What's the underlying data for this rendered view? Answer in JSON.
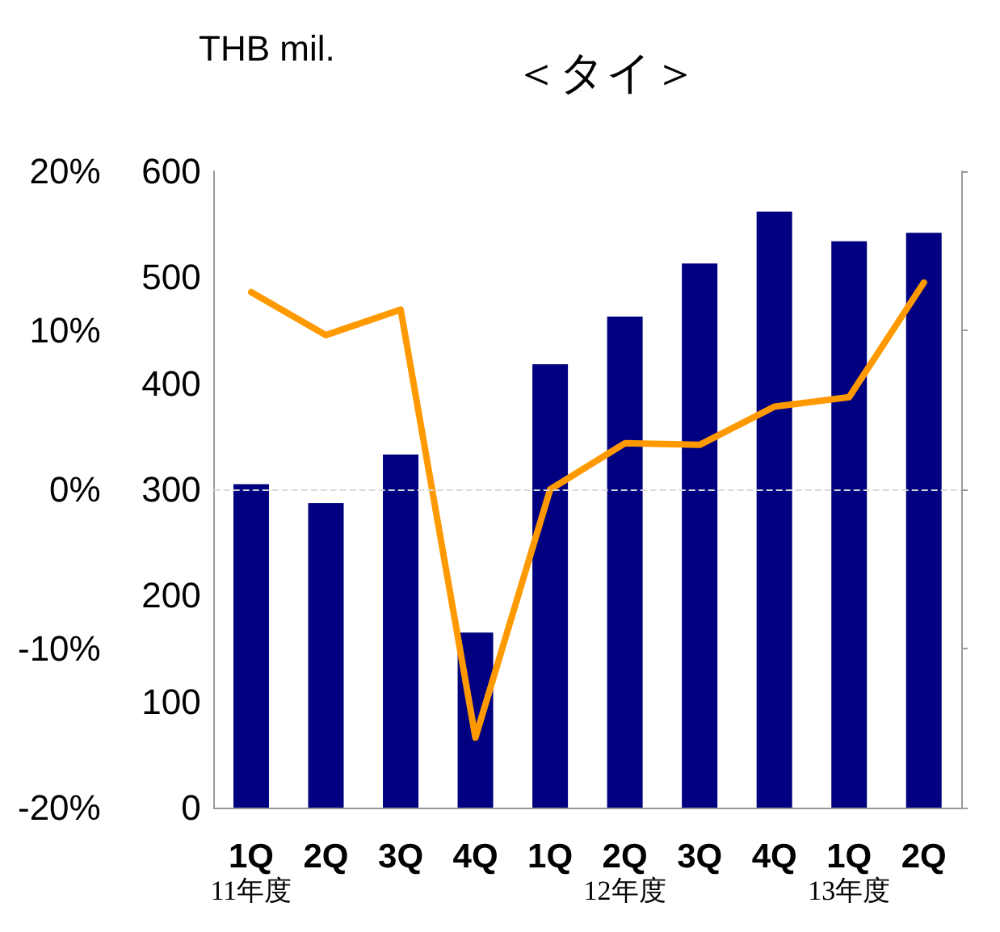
{
  "chart_data": {
    "type": "bar",
    "title": "＜タイ＞",
    "ylabel": "THB mil.",
    "categories": [
      "1Q\n11年度",
      "2Q",
      "3Q",
      "4Q",
      "1Q",
      "2Q\n12年度",
      "3Q",
      "4Q",
      "1Q\n13年度",
      "2Q"
    ],
    "series": [
      {
        "color": "#000080",
        "values": [
          305,
          287,
          333,
          165,
          418,
          463,
          513,
          562,
          534,
          542
        ]
      },
      {
        "type": "line",
        "axis": "y2",
        "color": "#ff9900",
        "values": [
          12.4,
          9.7,
          11.3,
          -15.6,
          0.0,
          2.9,
          2.8,
          5.2,
          5.8,
          13.0
        ]
      }
    ],
    "ylim": [
      0,
      600
    ],
    "yticks": [
      0,
      100,
      200,
      300,
      400,
      500,
      600
    ],
    "y2lim": [
      -20,
      20
    ],
    "y2ticks": [
      {
        "value": -20,
        "label": "-20%"
      },
      {
        "value": -10,
        "label": "-10%"
      },
      {
        "value": 0,
        "label": "0%"
      },
      {
        "value": 10,
        "label": "10%"
      },
      {
        "value": 20,
        "label": "20%"
      }
    ],
    "ref_lines": [
      {
        "axis": "y",
        "value": 300,
        "color": "#d9d9d9",
        "line_style": "dashed"
      }
    ],
    "grid": false,
    "marker": "none",
    "line_style": "solid"
  }
}
